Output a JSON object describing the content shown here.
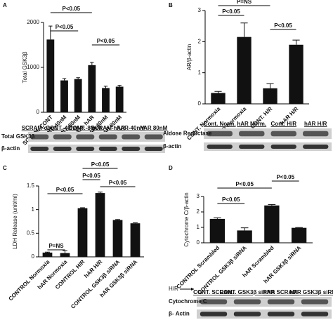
{
  "chart_data": [
    {
      "type": "bar",
      "panel": "A",
      "y_label": "Total GSK3β",
      "categories": [
        "SCRAM. CONT",
        "CONT. 40nM",
        "CONT. 80nM",
        "SCRAM. hAR",
        "hAR 40nM",
        "hAR 80nM"
      ],
      "values": [
        1620,
        710,
        740,
        1050,
        540,
        570
      ],
      "errors": [
        300,
        40,
        30,
        60,
        40,
        30
      ],
      "color": "#111111",
      "ylim": [
        0,
        2000
      ],
      "yticks": [
        0,
        1000,
        2000
      ],
      "annotations": [
        "P<0.05",
        "P<0.05",
        "P<0.05"
      ],
      "blot": {
        "lanes": [
          "SCRAM-cont.",
          "CONT.-40nM",
          "CONT.-80nM",
          "SCRAM-hAR",
          "hAR-40nM",
          "hAR 80nM"
        ],
        "rows": [
          "Total GSK3β",
          "β-actin"
        ]
      }
    },
    {
      "type": "bar",
      "panel": "B",
      "y_label": "AR/β-actin",
      "categories": [
        "CONT. Normoxia",
        "hAR Normoxia",
        "CONT. H/R",
        "hAR H/R"
      ],
      "values": [
        0.35,
        2.15,
        0.5,
        1.9
      ],
      "errors": [
        0.05,
        0.45,
        0.15,
        0.15
      ],
      "color": "#111111",
      "ylim": [
        0,
        3
      ],
      "yticks": [
        0,
        1,
        2,
        3
      ],
      "annotations": [
        "P=NS",
        "P<0.05",
        "P<0.05"
      ],
      "blot": {
        "lanes": [
          "Cont. Norm.",
          "hAR Norm.",
          "Cont. H/R",
          "hAR H/R"
        ],
        "rows": [
          "Aldose Reductase",
          "β-actin"
        ]
      }
    },
    {
      "type": "bar",
      "panel": "C",
      "y_label": "LDH Release (unit/ml)",
      "categories": [
        "CONTROL Normoxia",
        "hAR Normoxia",
        "CONTROL H/R",
        "hAR H/R",
        "CONTROL GSK3β siRNA",
        "hAR GSK3β siRNA"
      ],
      "values": [
        0.09,
        0.08,
        1.03,
        1.35,
        0.78,
        0.71
      ],
      "errors": [
        0.01,
        0.05,
        0.01,
        0.02,
        0.01,
        0.01
      ],
      "color": "#111111",
      "ylim": [
        0,
        1.5
      ],
      "yticks": [
        0,
        0.5,
        1,
        1.5
      ],
      "annotations": [
        "P<0.05",
        "P<0.05",
        "P<0.05",
        "P<0.05",
        "P=NS"
      ]
    },
    {
      "type": "bar",
      "panel": "D",
      "y_label": "Cytochrome C/β-actin",
      "categories": [
        "CONTROL Scrambled",
        "CONTROL GSK3β siRNA",
        "hAR Scrambled",
        "hAR GSK3β siRNA"
      ],
      "values": [
        1.55,
        0.8,
        2.42,
        0.97
      ],
      "errors": [
        0.07,
        0.17,
        0.06,
        0.02
      ],
      "color": "#111111",
      "ylim": [
        0,
        3
      ],
      "yticks": [
        0,
        1,
        2,
        3
      ],
      "annotations": [
        "P<0.05",
        "P<0.05",
        "P<0.05"
      ],
      "blot": {
        "treatment": "H/R",
        "lanes": [
          "CONT. SCRAM.",
          "CONT. GSK3β siRNA",
          "hAR SCRAM.",
          "hAR GSK3β siRNA"
        ],
        "rows": [
          "Cytochrome C",
          "β- Actin"
        ]
      }
    }
  ]
}
